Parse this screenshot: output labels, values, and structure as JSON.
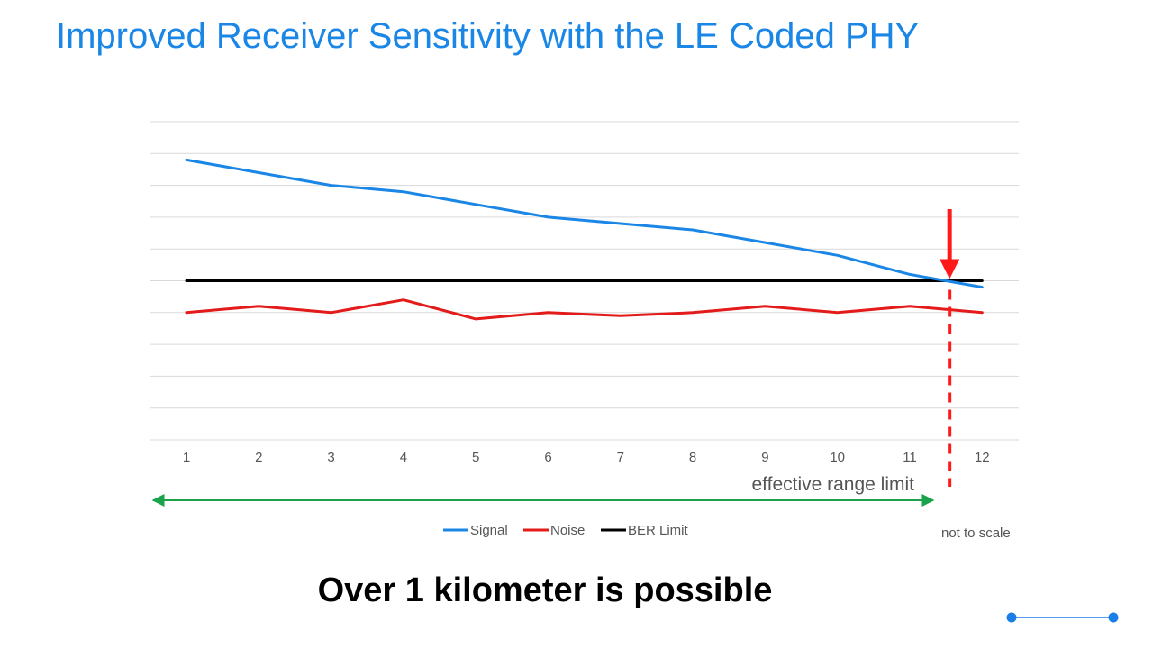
{
  "slide": {
    "title": "Improved Receiver Sensitivity with the LE Coded PHY",
    "callout": "Over 1 kilometer is possible",
    "note": "not to scale",
    "annotation": "effective range limit"
  },
  "colors": {
    "title": "#1a86e6",
    "signal": "#1a86e6",
    "noise": "#e31b1b",
    "ber": "#000000",
    "range_arrow": "#1aa34a",
    "marker": "#ff1a1a",
    "grid": "#d9d9d9",
    "accent_dots": "#1a7ee6"
  },
  "chart_data": {
    "type": "line",
    "categories": [
      "1",
      "2",
      "3",
      "4",
      "5",
      "6",
      "7",
      "8",
      "9",
      "10",
      "11",
      "12"
    ],
    "ylim": [
      0,
      10
    ],
    "grid": true,
    "legend_position": "bottom",
    "series": [
      {
        "name": "Signal",
        "color": "#1a86e6",
        "values": [
          8.8,
          8.4,
          8.0,
          7.8,
          7.4,
          7.0,
          6.8,
          6.6,
          6.2,
          5.8,
          5.2,
          4.8
        ]
      },
      {
        "name": "Noise",
        "color": "#e31b1b",
        "values": [
          4.0,
          4.2,
          4.0,
          4.4,
          3.8,
          4.0,
          3.9,
          4.0,
          4.2,
          4.0,
          4.2,
          4.0
        ]
      },
      {
        "name": "BER Limit",
        "color": "#000000",
        "values": [
          5.0,
          5.0,
          5.0,
          5.0,
          5.0,
          5.0,
          5.0,
          5.0,
          5.0,
          5.0,
          5.0,
          5.0
        ]
      }
    ],
    "range_limit_x": 11.55
  }
}
